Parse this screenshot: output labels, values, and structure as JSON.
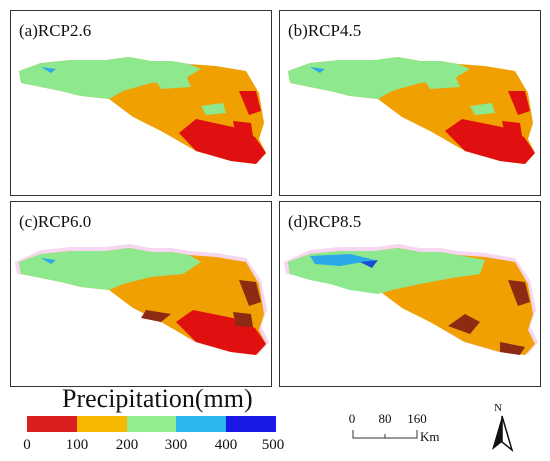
{
  "panels": [
    {
      "label": "(a)RCP2.6"
    },
    {
      "label": "(b)RCP4.5"
    },
    {
      "label": "(c)RCP6.0"
    },
    {
      "label": "(d)RCP8.5"
    }
  ],
  "legend": {
    "title": "Precipitation(mm)",
    "ticks": [
      "0",
      "100",
      "200",
      "300",
      "400",
      "500"
    ],
    "colors": [
      "#d91e1e",
      "#f5b700",
      "#90ee90",
      "#2ab8ee",
      "#1a18e6"
    ]
  },
  "scale": {
    "labels": [
      "0",
      "80",
      "160"
    ],
    "unit": "Km"
  },
  "north": {
    "letter": "N"
  },
  "map_colors": {
    "brown": "#8c2a12",
    "red": "#e01010",
    "orange": "#f0a000",
    "yellow": "#e8e020",
    "green": "#8ee88e",
    "light_blue": "#2aa8e8",
    "dark_blue": "#1a4ed8",
    "halo": "#f6d6f0"
  }
}
